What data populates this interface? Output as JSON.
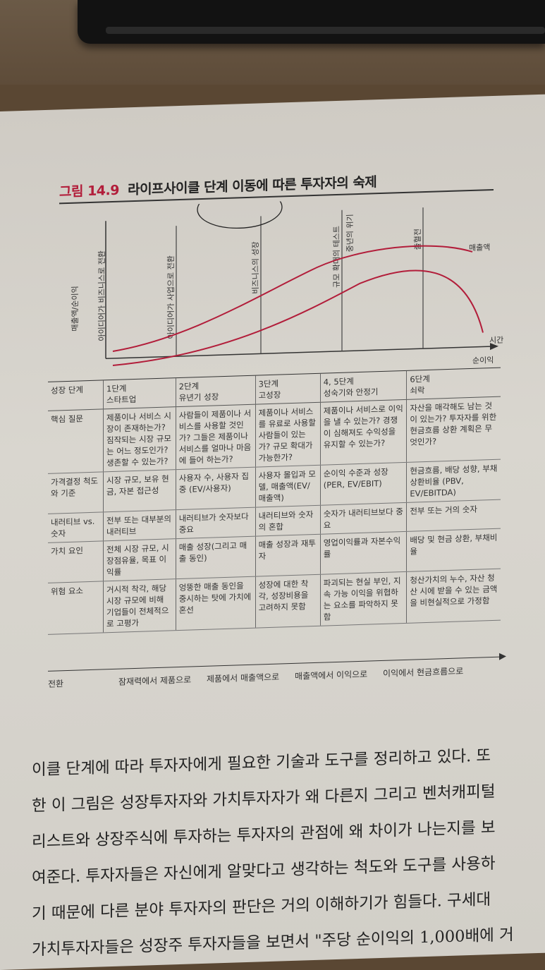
{
  "figure": {
    "number": "그림 14.9",
    "title": "라이프사이클 단계 이동에 따른 투자자의 숙제"
  },
  "chart": {
    "y_label": "매출액/순이익",
    "x_label": "시간",
    "series": {
      "revenue": "매출액",
      "profit": "순이익"
    },
    "milestones": [
      "아이디어가 비즈니스로 전환",
      "아이디어가 사업으로 전환",
      "비즈니스의 성장",
      "규모 확대의 테스트",
      "중년의 위기",
      "출혈전"
    ]
  },
  "table": {
    "header": {
      "label": "성장 단계",
      "stages": [
        "1단계\n스타트업",
        "2단계\n유년기 성장",
        "3단계\n고성장",
        "4, 5단계\n성숙기와 안정기",
        "6단계\n쇠락"
      ]
    },
    "rows": [
      {
        "label": "핵심 질문",
        "cells": [
          "제품이나 서비스 시장이 존재하는가? 짐작되는 시장 규모는 어느 정도인가? 생존할 수 있는가?",
          "사람들이 제품이나 서비스를 사용할 것인가? 그들은 제품이나 서비스를 얼마나 마음에 들어 하는가?",
          "제품이나 서비스를 유료로 사용할 사람들이 있는가? 규모 확대가 가능한가?",
          "제품이나 서비스로 이익을 낼 수 있는가? 경쟁이 심해져도 수익성을 유지할 수 있는가?",
          "자산을 매각해도 남는 것이 있는가? 투자자를 위한 현금흐름 상환 계획은 무엇인가?"
        ]
      },
      {
        "label": "가격결정 척도와 기준",
        "cells": [
          "시장 규모, 보유 현금, 자본 접근성",
          "사용자 수, 사용자 집중 (EV/사용자)",
          "사용자 몰입과 모델, 매출액(EV/매출액)",
          "순이익 수준과 성장 (PER, EV/EBIT)",
          "현금흐름, 배당 성향, 부채상환비율 (PBV, EV/EBITDA)"
        ]
      },
      {
        "label": "내러티브 vs. 숫자",
        "cells": [
          "전부 또는 대부분의 내러티브",
          "내러티브가 숫자보다 중요",
          "내러티브와 숫자의 혼합",
          "숫자가 내러티브보다 중요",
          "전부 또는 거의 숫자"
        ]
      },
      {
        "label": "가치 요인",
        "cells": [
          "전체 시장 규모, 시장점유율, 목표 이익률",
          "매출 성장(그리고 매출 동인)",
          "매출 성장과 재투자",
          "영업이익률과 자본수익률",
          "배당 및 현금 상환, 부채비율"
        ]
      },
      {
        "label": "위험 요소",
        "cells": [
          "거시적 착각, 해당 시장 규모에 비해 기업들이 전체적으로 고평가",
          "엉뚱한 매출 동인을 중시하는 탓에 가치에 혼선",
          "성장에 대한 착각, 성장비용을 고려하지 못함",
          "파괴되는 현실 부인, 지속 가능 이익을 위협하는 요소를 파악하지 못함",
          "청산가치의 누수, 자산 청산 시에 받을 수 있는 금액을 비현실적으로 가정함"
        ]
      }
    ]
  },
  "transitions": {
    "label": "전환",
    "items": [
      "잠재력에서 제품으로",
      "제품에서 매출액으로",
      "매출액에서 이익으로",
      "이익에서 현금흐름으로"
    ]
  },
  "body": {
    "lines": [
      "이클 단계에 따라 투자자에게 필요한 기술과 도구를 정리하고 있다. 또",
      "한 이 그림은 성장투자자와 가치투자자가 왜 다른지 그리고 벤처캐피털",
      "리스트와 상장주식에 투자하는 투자자의 관점에 왜 차이가 나는지를 보",
      "여준다. 투자자들은 자신에게 알맞다고 생각하는 척도와 도구를 사용하",
      "기 때문에 다른 분야 투자자의 판단은 거의 이해하기가 힘들다. 구세대",
      "가치투자자들은 성장주 투자자들을 보면서 \"주당 순이익의 1,000배에 거"
    ]
  }
}
